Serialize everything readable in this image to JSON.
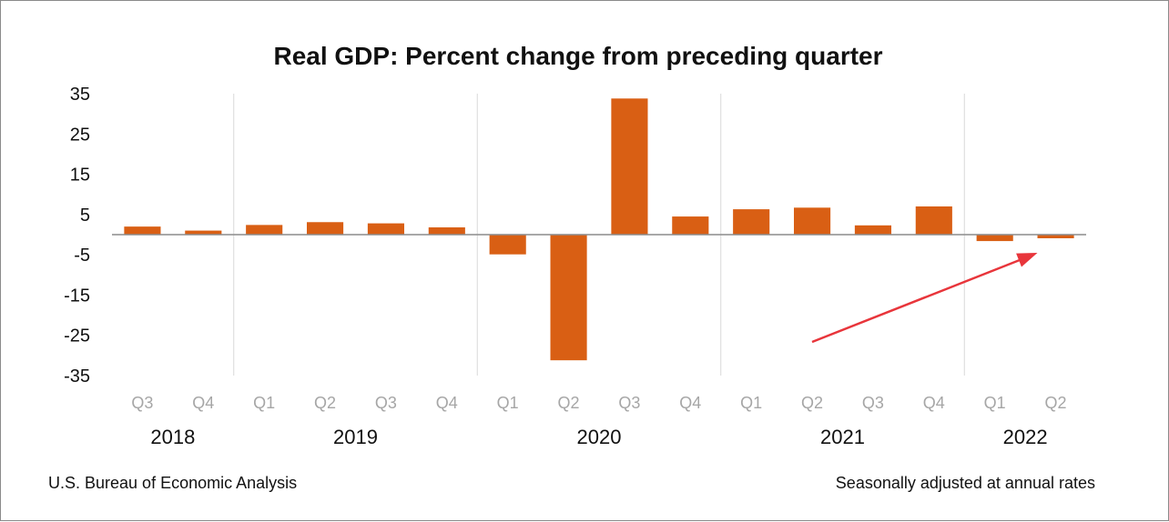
{
  "chart_data": {
    "type": "bar",
    "title": "Real GDP:  Percent change from preceding quarter",
    "categories": [
      "Q3",
      "Q4",
      "Q1",
      "Q2",
      "Q3",
      "Q4",
      "Q1",
      "Q2",
      "Q3",
      "Q4",
      "Q1",
      "Q2",
      "Q3",
      "Q4",
      "Q1",
      "Q2"
    ],
    "years": [
      {
        "label": "2018",
        "quarters": 2
      },
      {
        "label": "2019",
        "quarters": 4
      },
      {
        "label": "2020",
        "quarters": 4
      },
      {
        "label": "2021",
        "quarters": 4
      },
      {
        "label": "2022",
        "quarters": 2
      }
    ],
    "values": [
      2.0,
      1.0,
      2.4,
      3.1,
      2.8,
      1.8,
      -4.9,
      -31.2,
      33.8,
      4.5,
      6.3,
      6.7,
      2.3,
      7.0,
      -1.6,
      -0.9
    ],
    "ylim": [
      -35,
      35
    ],
    "yticks": [
      "35",
      "25",
      "15",
      "5",
      "-5",
      "-15",
      "-25",
      "-35"
    ],
    "bar_color": "#d95f14",
    "grid": false,
    "source": "U.S. Bureau of Economic Analysis",
    "note": "Seasonally adjusted at annual rates",
    "annotation": {
      "type": "arrow",
      "color": "#e8353b",
      "points_to_category_index": 15
    }
  }
}
